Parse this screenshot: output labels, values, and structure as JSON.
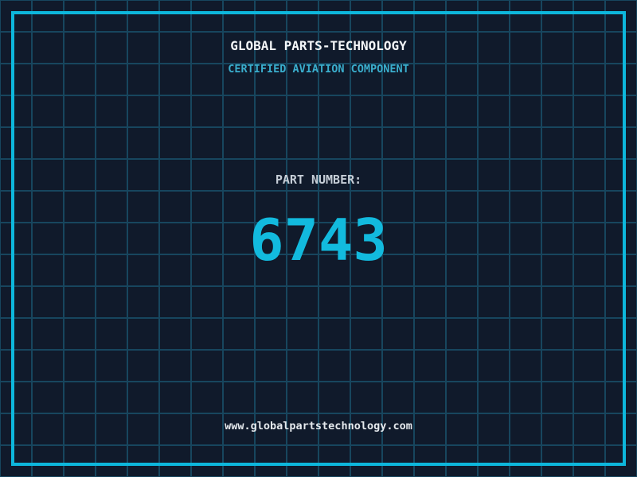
{
  "colors": {
    "background": "#101a2b",
    "grid-line": "#17465e",
    "frame": "#0db7dc",
    "title": "#f4f6f8",
    "subtitle": "#3aaecd",
    "part-label": "#c6ced7",
    "part-number": "#12bade",
    "url": "#e5e9ed"
  },
  "header": {
    "title": "GLOBAL PARTS-TECHNOLOGY",
    "subtitle": "CERTIFIED AVIATION COMPONENT"
  },
  "part": {
    "label": "PART NUMBER:",
    "number": "6743"
  },
  "footer": {
    "url": "www.globalpartstechnology.com"
  }
}
